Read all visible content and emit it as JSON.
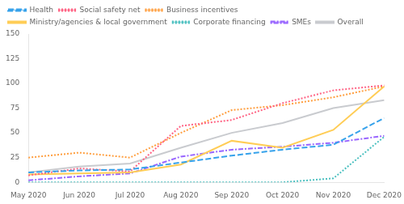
{
  "chart_data": {
    "type": "line",
    "categories": [
      "May 2020",
      "Jun 2020",
      "Jul 2020",
      "Aug 2020",
      "Sep 2020",
      "Oct 2020",
      "Nov 2020",
      "Dec 2020"
    ],
    "series": [
      {
        "name": "Health",
        "values": [
          10,
          12,
          13,
          20,
          27,
          33,
          38,
          65
        ],
        "line_style": "dashed"
      },
      {
        "name": "Social safety net",
        "values": [
          7,
          14,
          11,
          57,
          63,
          80,
          93,
          98
        ],
        "line_style": "dotted"
      },
      {
        "name": "Business incentives",
        "values": [
          25,
          30,
          25,
          50,
          73,
          78,
          86,
          97
        ],
        "line_style": "dotted"
      },
      {
        "name": "Ministry/agencies & local government",
        "values": [
          8,
          9,
          10,
          18,
          42,
          35,
          53,
          97
        ],
        "line_style": "solid"
      },
      {
        "name": "Corporate financing",
        "values": [
          0,
          0,
          0,
          0,
          0,
          0,
          4,
          46
        ],
        "line_style": "dotted"
      },
      {
        "name": "SMEs",
        "values": [
          2,
          6,
          9,
          26,
          33,
          36,
          40,
          47
        ],
        "line_style": "dashdot"
      },
      {
        "name": "Overall",
        "values": [
          10,
          16,
          19,
          35,
          50,
          60,
          75,
          83
        ],
        "line_style": "solid"
      }
    ],
    "ylim": [
      0,
      150
    ],
    "yticks": [
      0,
      25,
      50,
      75,
      100,
      125,
      150
    ],
    "grid": false,
    "legend": "upper left"
  }
}
